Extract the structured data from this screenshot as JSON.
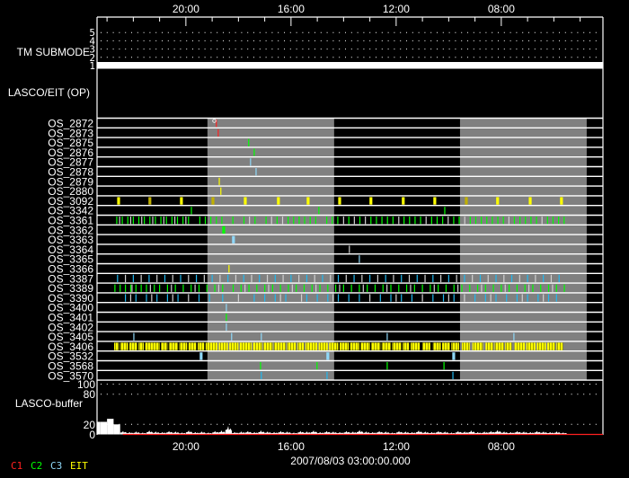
{
  "chart_data": {
    "type": "timeline",
    "x_axis": {
      "tick_labels": [
        "20:00",
        "16:00",
        "12:00",
        "08:00"
      ],
      "tick_hours": [
        20,
        16,
        12,
        8
      ],
      "range_hours": [
        23.38,
        4.13
      ],
      "direction": "decreasing",
      "date_label": "2007/08/03 03:00:00.000"
    },
    "tm_submode": {
      "label": "TM SUBMODE",
      "y_ticks": [
        "5",
        "4",
        "3",
        "2",
        "1"
      ],
      "value": 1,
      "grid": "dotted"
    },
    "lasco_eit_label": "LASCO/EIT (OP)",
    "shaded_intervals": [
      [
        19.18,
        14.36
      ],
      [
        9.57,
        4.75
      ]
    ],
    "colors": {
      "c1": "#ff2020",
      "c2": "#00ff00",
      "c3": "#8fd8f8",
      "c3b": "#20b8f0",
      "eit": "#ffff00",
      "eit_dim": "#c0b000",
      "other": "#d0d0d0",
      "shade": "#808080"
    },
    "rows": [
      {
        "label": "OS_2872",
        "marks": [
          {
            "color": "c1",
            "times": [
              18.84
            ]
          }
        ]
      },
      {
        "label": "OS_2873",
        "marks": [
          {
            "color": "c1",
            "times": [
              18.77
            ]
          }
        ]
      },
      {
        "label": "OS_2875",
        "marks": [
          {
            "color": "c2",
            "times": [
              17.61
            ]
          }
        ]
      },
      {
        "label": "OS_2876",
        "marks": [
          {
            "color": "c2",
            "times": [
              17.4
            ]
          }
        ]
      },
      {
        "label": "OS_2877",
        "marks": [
          {
            "color": "c3",
            "times": [
              17.54
            ]
          }
        ]
      },
      {
        "label": "OS_2878",
        "marks": [
          {
            "color": "c3",
            "times": [
              17.33
            ]
          }
        ]
      },
      {
        "label": "OS_2879",
        "marks": [
          {
            "color": "eit",
            "times": [
              18.73
            ]
          }
        ]
      },
      {
        "label": "OS_2880",
        "marks": [
          {
            "color": "eit",
            "times": [
              18.67
            ]
          }
        ]
      },
      {
        "label": "OS_3092",
        "marks": [
          {
            "color": "eit",
            "wide": true,
            "times": [
              22.56,
              20.17,
              17.74,
              16.48,
              15.35,
              14.15,
              12.96,
              11.73,
              10.53,
              8.14,
              6.9,
              5.71
            ]
          },
          {
            "color": "eit_dim",
            "wide": true,
            "times": [
              21.37,
              18.97,
              9.33
            ]
          }
        ]
      },
      {
        "label": "OS_3342",
        "marks": [
          {
            "color": "c2",
            "times": [
              19.79,
              14.94,
              10.15
            ]
          }
        ]
      },
      {
        "label": "OS_3361",
        "marks": [
          {
            "color": "c2",
            "times": [
              22.63,
              22.42,
              22.21,
              22.0,
              21.79,
              21.58,
              21.37,
              21.16,
              20.95,
              20.74,
              20.53,
              20.32,
              20.11,
              19.9,
              19.47,
              19.26,
              19.05,
              18.84,
              18.63,
              18.21,
              17.79,
              17.37,
              16.95,
              16.53,
              16.11,
              15.9,
              15.69,
              15.48,
              15.27,
              15.06,
              14.64,
              14.43,
              14.22,
              13.8,
              13.38,
              12.96,
              12.75,
              12.54,
              12.33,
              12.12,
              11.7,
              11.49,
              11.28,
              11.07,
              10.65,
              10.44,
              10.23,
              9.81,
              9.6,
              9.18,
              8.97,
              8.76,
              8.55,
              8.34,
              8.13,
              7.92,
              7.5,
              7.29,
              7.08,
              6.87,
              6.66,
              6.24,
              6.03,
              5.82,
              5.61
            ]
          },
          {
            "color": "other",
            "times": [
              22.52,
              22.1,
              21.68,
              21.26,
              20.84,
              20.42,
              20.0,
              17.58,
              16.74,
              16.32,
              14.0,
              13.59,
              13.17,
              11.9,
              10.86,
              10.02,
              9.39,
              7.71,
              6.45
            ]
          }
        ]
      },
      {
        "label": "OS_3362",
        "marks": [
          {
            "color": "c2",
            "wide": true,
            "times": [
              18.56
            ]
          }
        ]
      },
      {
        "label": "OS_3363",
        "marks": [
          {
            "color": "c3",
            "wide": true,
            "times": [
              18.19
            ]
          }
        ]
      },
      {
        "label": "OS_3364",
        "marks": [
          {
            "color": "other",
            "times": [
              13.78
            ]
          }
        ]
      },
      {
        "label": "OS_3365",
        "marks": [
          {
            "color": "c3",
            "times": [
              13.4
            ]
          }
        ]
      },
      {
        "label": "OS_3366",
        "marks": [
          {
            "color": "eit",
            "times": [
              18.36
            ]
          }
        ]
      },
      {
        "label": "OS_3387",
        "marks": [
          {
            "color": "c3b",
            "times": [
              22.6,
              22.0,
              21.4,
              20.8,
              20.2,
              19.6,
              19.0,
              18.4,
              17.8,
              17.2,
              16.6,
              16.0,
              15.4,
              14.8,
              14.2,
              13.6,
              13.0,
              12.4,
              11.8,
              11.2,
              10.6,
              10.0,
              9.4,
              8.8,
              8.2,
              7.6,
              7.0,
              6.4,
              5.8
            ]
          },
          {
            "color": "other",
            "times": [
              22.3,
              21.7,
              21.1,
              20.5,
              19.9,
              19.3,
              18.7,
              18.1,
              17.5,
              16.9,
              16.3,
              15.7,
              15.1,
              14.5,
              13.9,
              13.3,
              12.7,
              12.1,
              11.5,
              10.9,
              10.3,
              9.7,
              9.1,
              8.5,
              7.9,
              7.3,
              6.7,
              6.1
            ]
          }
        ]
      },
      {
        "label": "OS_3389",
        "marks": [
          {
            "color": "c2",
            "times": [
              22.7,
              22.5,
              22.3,
              22.1,
              21.9,
              21.7,
              21.5,
              21.2,
              21.0,
              20.7,
              20.4,
              20.1,
              19.8,
              19.5,
              19.2,
              18.9,
              18.6,
              18.2,
              17.9,
              17.6,
              17.3,
              17.0,
              16.7,
              16.4,
              16.1,
              15.8,
              15.5,
              15.2,
              14.9,
              14.6,
              14.3,
              14.0,
              13.7,
              13.4,
              13.1,
              12.8,
              12.5,
              12.2,
              11.9,
              11.6,
              11.3,
              11.0,
              10.7,
              10.4,
              10.1,
              9.8,
              9.5,
              9.2,
              8.9,
              8.6,
              8.3,
              8.0,
              7.7,
              7.4,
              7.1,
              6.8,
              6.5,
              6.2,
              5.9,
              5.6
            ]
          },
          {
            "color": "other",
            "times": [
              22.05,
              21.35,
              20.55,
              19.65,
              18.75,
              17.75,
              16.85,
              15.95,
              15.05,
              14.15,
              13.25,
              12.35,
              11.45,
              10.55,
              9.65,
              8.75,
              7.85,
              6.95,
              6.05
            ]
          }
        ]
      },
      {
        "label": "OS_3390",
        "marks": [
          {
            "color": "c3b",
            "times": [
              22.3,
              21.9,
              21.5,
              21.1,
              20.7,
              20.3,
              19.5,
              19.1,
              18.6,
              17.4,
              17.0,
              16.6,
              16.2,
              15.4,
              15.0,
              14.6,
              14.2,
              13.8,
              13.4,
              12.6,
              12.2,
              11.8,
              11.4,
              10.6,
              10.2,
              9.8,
              9.0,
              8.6,
              8.2,
              7.8,
              7.4,
              7.0,
              6.6,
              6.2,
              5.9
            ]
          },
          {
            "color": "other",
            "times": [
              22.1,
              21.3,
              20.5,
              19.9,
              18.0,
              16.4,
              15.6,
              14.4,
              13.0,
              12.0,
              11.0,
              10.0,
              9.4,
              8.4,
              7.2,
              6.4
            ]
          }
        ]
      },
      {
        "label": "OS_3400",
        "marks": [
          {
            "color": "c3",
            "times": [
              18.46
            ]
          }
        ]
      },
      {
        "label": "OS_3401",
        "marks": [
          {
            "color": "c2",
            "times": [
              18.46
            ]
          }
        ]
      },
      {
        "label": "OS_3402",
        "marks": [
          {
            "color": "c3",
            "times": [
              18.46
            ]
          }
        ]
      },
      {
        "label": "OS_3405",
        "marks": [
          {
            "color": "c3",
            "times": [
              21.98,
              18.26,
              17.13,
              12.34,
              7.52
            ]
          }
        ]
      },
      {
        "label": "OS_3406",
        "intervals_color": "eit",
        "intervals": [
          [
            22.73,
            22.55
          ],
          [
            22.5,
            22.2
          ],
          [
            22.15,
            21.85
          ],
          [
            21.8,
            21.6
          ],
          [
            21.55,
            21.0
          ],
          [
            20.95,
            20.7
          ],
          [
            20.65,
            20.3
          ],
          [
            20.25,
            19.95
          ],
          [
            19.9,
            19.6
          ],
          [
            19.55,
            19.3
          ],
          [
            19.25,
            18.8
          ],
          [
            18.75,
            18.4
          ],
          [
            18.35,
            18.0
          ],
          [
            17.95,
            17.5
          ],
          [
            17.45,
            17.1
          ],
          [
            17.05,
            16.7
          ],
          [
            16.65,
            16.2
          ],
          [
            16.15,
            15.8
          ],
          [
            15.75,
            15.5
          ],
          [
            15.45,
            15.0
          ],
          [
            14.95,
            14.6
          ],
          [
            14.55,
            14.2
          ],
          [
            14.15,
            13.8
          ],
          [
            13.75,
            13.4
          ],
          [
            13.35,
            13.0
          ],
          [
            12.95,
            12.6
          ],
          [
            12.55,
            12.2
          ],
          [
            12.15,
            11.8
          ],
          [
            11.75,
            11.5
          ],
          [
            11.45,
            11.1
          ],
          [
            11.0,
            10.7
          ],
          [
            10.6,
            10.3
          ],
          [
            10.25,
            9.95
          ],
          [
            9.9,
            9.6
          ],
          [
            9.5,
            9.2
          ],
          [
            9.1,
            8.7
          ],
          [
            8.6,
            8.3
          ],
          [
            8.25,
            7.9
          ],
          [
            7.85,
            7.6
          ],
          [
            7.5,
            7.1
          ],
          [
            7.05,
            6.7
          ],
          [
            6.65,
            6.3
          ],
          [
            6.25,
            5.95
          ],
          [
            5.9,
            5.65
          ]
        ],
        "marks": []
      },
      {
        "label": "OS_3532",
        "marks": [
          {
            "color": "c3",
            "wide": true,
            "times": [
              19.42,
              14.6,
              9.81
            ]
          }
        ]
      },
      {
        "label": "OS_3568",
        "marks": [
          {
            "color": "c2",
            "times": [
              17.16,
              15.01,
              12.34,
              10.18
            ]
          }
        ]
      },
      {
        "label": "OS_3570",
        "marks": [
          {
            "color": "c3b",
            "times": [
              17.13,
              14.63,
              9.84
            ]
          }
        ]
      }
    ],
    "buffer": {
      "label": "LASCO-buffer",
      "y_ticks": [
        "100",
        "80",
        "20",
        "0"
      ],
      "y_tick_values": [
        100,
        80,
        20,
        0
      ],
      "ylim": [
        0,
        100
      ],
      "start_hour": 23.25,
      "interval_hours": 0.25,
      "values": [
        25,
        25,
        31,
        20,
        7,
        5,
        6,
        4,
        8,
        6,
        5,
        7,
        6,
        4,
        8,
        5,
        6,
        4,
        7,
        8,
        17,
        5,
        6,
        7,
        5,
        8,
        6,
        5,
        7,
        6,
        4,
        7,
        6,
        8,
        5,
        7,
        6,
        5,
        7,
        6,
        9,
        6,
        5,
        7,
        6,
        4,
        7,
        6,
        5,
        8,
        6,
        5,
        7,
        6,
        4,
        7,
        6,
        8,
        5,
        6,
        7,
        9,
        6,
        5,
        7,
        6,
        5,
        7,
        6,
        5,
        6,
        4,
        0,
        0,
        0,
        0,
        0
      ],
      "c1_zero_range": [
        22.4,
        4.13
      ]
    },
    "legend": [
      {
        "label": "C1",
        "color": "#ff2020"
      },
      {
        "label": "C2",
        "color": "#00ff00"
      },
      {
        "label": "C3",
        "color": "#8fd8f8"
      },
      {
        "label": "EIT",
        "color": "#ffff00"
      }
    ]
  }
}
